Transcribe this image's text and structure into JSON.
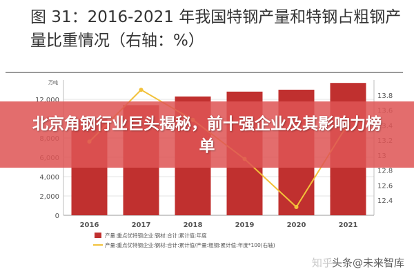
{
  "figure": {
    "title": "图 31：2016-2021 年我国特钢产量和特钢占粗钢产量比重情况（右轴：%）"
  },
  "banner": {
    "text": "北京角钢行业巨头揭秘，前十强企业及其影响力榜单"
  },
  "watermark": {
    "faint": "知乎",
    "text": "头条@未来智库"
  },
  "colors": {
    "bar": "#c0302f",
    "line": "#f2c13a",
    "grid": "#e3e3e3",
    "axis_text": "#555555",
    "banner": "#de5555"
  },
  "chart_data": {
    "type": "bar",
    "categories": [
      "2016",
      "2017",
      "2018",
      "2019",
      "2020",
      "2021"
    ],
    "left_axis": {
      "unit": "万吨",
      "range": [
        0,
        14000
      ],
      "ticks": [
        "0",
        "2,000",
        "4,000",
        "6,000",
        "8,000",
        "10,000",
        "12,000"
      ]
    },
    "right_axis": {
      "range": [
        12.2,
        14.0
      ],
      "ticks": [
        "12.4",
        "12.6",
        "12.8",
        "13",
        "13.2",
        "13.4",
        "13.6",
        "13.8"
      ]
    },
    "series": [
      {
        "name": "产量:重点优特钢企业:钢材:合计:累计值:年度",
        "type": "bar",
        "axis": "left",
        "values": [
          10000,
          11400,
          12300,
          12800,
          13000,
          13700
        ]
      },
      {
        "name": "产量:重点优特钢企业:钢材:合计:累计值/产量:粗钢:累计值:年度*100(右轴)",
        "type": "line",
        "axis": "right",
        "values": [
          13.18,
          13.87,
          13.47,
          12.95,
          12.31,
          13.42
        ]
      }
    ],
    "grid": true,
    "legend_position": "bottom"
  }
}
